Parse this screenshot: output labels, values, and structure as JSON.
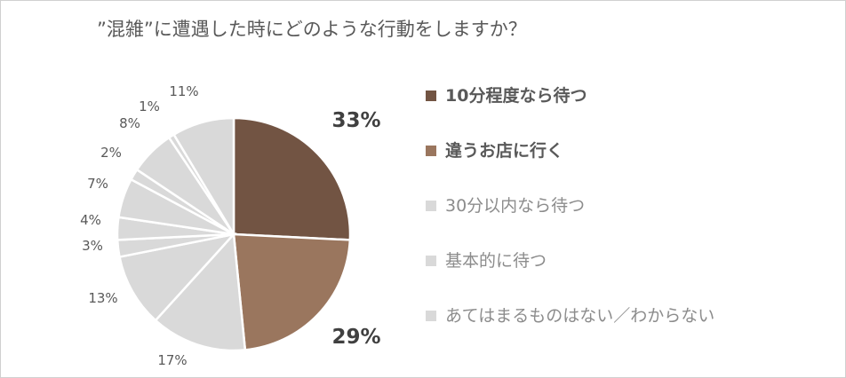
{
  "chart_data": {
    "type": "pie",
    "title": "”混雑”に遭遇した時にどのような行動をしますか？",
    "slices": [
      {
        "label": "33%",
        "value": 33,
        "color": "#725443",
        "bold": true
      },
      {
        "label": "29%",
        "value": 29,
        "color": "#9a765e",
        "bold": true
      },
      {
        "label": "17%",
        "value": 17,
        "color": "#d9d9d9",
        "bold": false
      },
      {
        "label": "13%",
        "value": 13,
        "color": "#d9d9d9",
        "bold": false
      },
      {
        "label": "3%",
        "value": 3,
        "color": "#d9d9d9",
        "bold": false
      },
      {
        "label": "4%",
        "value": 4,
        "color": "#d9d9d9",
        "bold": false
      },
      {
        "label": "7%",
        "value": 7,
        "color": "#d9d9d9",
        "bold": false
      },
      {
        "label": "2%",
        "value": 2,
        "color": "#d9d9d9",
        "bold": false
      },
      {
        "label": "8%",
        "value": 8,
        "color": "#d9d9d9",
        "bold": false
      },
      {
        "label": "1%",
        "value": 1,
        "color": "#d9d9d9",
        "bold": false
      },
      {
        "label": "11%",
        "value": 11,
        "color": "#d9d9d9",
        "bold": false
      }
    ],
    "legend": [
      {
        "label": "10分程度なら待つ",
        "color": "#725443",
        "bold": true
      },
      {
        "label": "違うお店に行く",
        "color": "#9a765e",
        "bold": true
      },
      {
        "label": "30分以内なら待つ",
        "color": "#d9d9d9",
        "bold": false
      },
      {
        "label": "基本的に待つ",
        "color": "#d9d9d9",
        "bold": false
      },
      {
        "label": "あてはまるものはない／わからない",
        "color": "#d9d9d9",
        "bold": false
      }
    ],
    "legend_position": "right"
  }
}
